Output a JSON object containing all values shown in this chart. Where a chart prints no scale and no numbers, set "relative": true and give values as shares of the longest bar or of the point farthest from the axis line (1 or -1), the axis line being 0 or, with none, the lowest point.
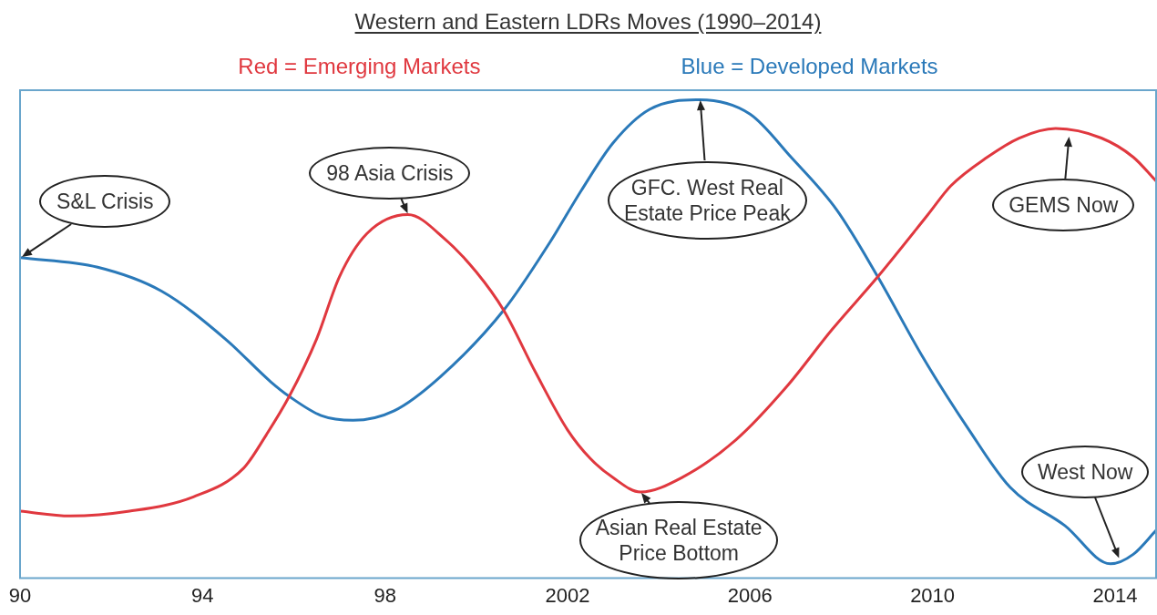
{
  "chart_data": {
    "type": "line",
    "title": "Western and Eastern LDRs Moves (1990–2014)",
    "relative": true,
    "tick_labels": "x",
    "grid": false,
    "legend": "top",
    "marker": "none",
    "line_style": "solid",
    "xlim": [
      1990,
      2014.9
    ],
    "xticks": [
      {
        "value": 1990,
        "label": "90"
      },
      {
        "value": 1994,
        "label": "94"
      },
      {
        "value": 1998,
        "label": "98"
      },
      2002,
      2006,
      2010,
      2014
    ],
    "series": [
      {
        "name": "Red = Emerging Markets",
        "color": "#e0383f",
        "x": [
          1990,
          1991.1,
          1992.4,
          1993.8,
          1994.9,
          1995.4,
          1995.9,
          1996.5,
          1997.0,
          1997.6,
          1998.5,
          1999.3,
          2000.0,
          2000.6,
          2001.3,
          2002.0,
          2002.5,
          2003.0,
          2003.6,
          2004.5,
          2005.7,
          2006.8,
          2007.8,
          2008.8,
          2009.9,
          2010.4,
          2011.2,
          2011.9,
          2012.7,
          2013.7,
          2014.4,
          2014.9
        ],
        "values": [
          0.14,
          0.13,
          0.14,
          0.17,
          0.23,
          0.3,
          0.38,
          0.5,
          0.63,
          0.72,
          0.76,
          0.71,
          0.64,
          0.56,
          0.43,
          0.31,
          0.25,
          0.21,
          0.18,
          0.21,
          0.29,
          0.4,
          0.52,
          0.63,
          0.76,
          0.82,
          0.88,
          0.92,
          0.94,
          0.92,
          0.88,
          0.83
        ]
      },
      {
        "name": "Blue = Developed Markets",
        "color": "#2a79b9",
        "x": [
          1990,
          1991.7,
          1993.1,
          1994.5,
          1995.5,
          1995.9,
          1996.6,
          1997.3,
          1998.2,
          1999.2,
          2000.6,
          2001.6,
          2002.3,
          2003.0,
          2003.8,
          2004.9,
          2006.0,
          2006.9,
          2007.9,
          2008.8,
          2009.8,
          2010.8,
          2011.7,
          2012.9,
          2013.9,
          2014.4,
          2014.9
        ],
        "values": [
          0.67,
          0.65,
          0.6,
          0.5,
          0.41,
          0.38,
          0.34,
          0.33,
          0.35,
          0.42,
          0.56,
          0.7,
          0.81,
          0.91,
          0.98,
          1.0,
          0.97,
          0.88,
          0.77,
          0.63,
          0.46,
          0.31,
          0.19,
          0.11,
          0.03,
          0.05,
          0.1
        ]
      }
    ],
    "annotations": [
      {
        "text": "S&L Crisis",
        "x": 1990,
        "y": 0.67
      },
      {
        "text": "98 Asia Crisis",
        "x": 1998.5,
        "y": 0.76
      },
      {
        "text": "GFC. West Real Estate Price Peak",
        "x": 2004.9,
        "y": 1.0
      },
      {
        "text": "Asian Real Estate Price Bottom",
        "x": 2003.6,
        "y": 0.18
      },
      {
        "text": "GEMS Now",
        "x": 2013.0,
        "y": 0.93
      },
      {
        "text": "West Now",
        "x": 2014.1,
        "y": 0.04
      }
    ]
  }
}
